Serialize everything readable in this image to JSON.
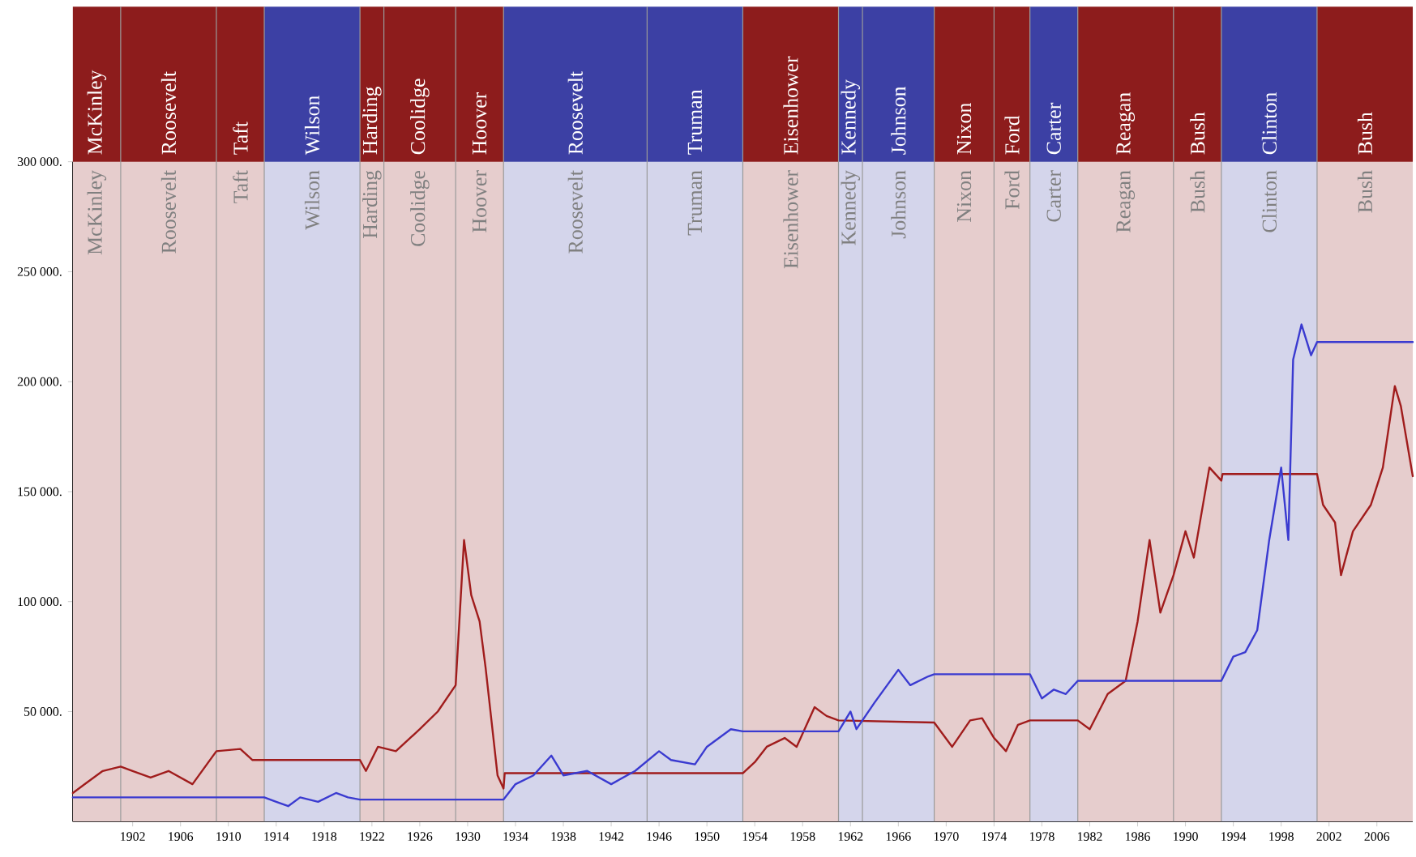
{
  "chart_data": {
    "type": "line",
    "xlim": [
      1897,
      2009
    ],
    "ylim": [
      0,
      300000
    ],
    "xticks": [
      1902,
      1906,
      1910,
      1914,
      1918,
      1922,
      1926,
      1930,
      1934,
      1938,
      1942,
      1946,
      1950,
      1954,
      1958,
      1962,
      1966,
      1970,
      1974,
      1978,
      1982,
      1986,
      1990,
      1994,
      1998,
      2002,
      2006
    ],
    "yticks": [
      {
        "value": 50000,
        "label": "50 000."
      },
      {
        "value": 100000,
        "label": "100 000."
      },
      {
        "value": 150000,
        "label": "150 000."
      },
      {
        "value": 200000,
        "label": "200 000."
      },
      {
        "value": 250000,
        "label": "250 000."
      },
      {
        "value": 300000,
        "label": "300 000."
      }
    ],
    "series": [
      {
        "color": "#a01c1c",
        "x": [
          1897,
          1898,
          1899.5,
          1901,
          1902,
          1903.5,
          1905,
          1907,
          1909,
          1911,
          1912,
          1913,
          1921,
          1921.5,
          1922.5,
          1924,
          1926,
          1927.5,
          1929,
          1929.7,
          1930.3,
          1931,
          1931.5,
          1932.5,
          1933,
          1933.1,
          1953,
          1954,
          1955,
          1956.5,
          1957.5,
          1959,
          1960,
          1961,
          1969,
          1970.5,
          1972,
          1973,
          1974,
          1975,
          1976,
          1977,
          1981,
          1982,
          1983.5,
          1985,
          1986,
          1987,
          1987.9,
          1989,
          1990,
          1990.7,
          1992,
          1993,
          1993.1,
          2001,
          2001.5,
          2002.5,
          2003,
          2004,
          2005.5,
          2006.5,
          2007.5,
          2008,
          2009
        ],
        "values": [
          13000,
          17000,
          23000,
          25000,
          23000,
          20000,
          23000,
          17000,
          32000,
          33000,
          28000,
          28000,
          28000,
          23000,
          34000,
          32000,
          42000,
          50000,
          62000,
          128000,
          103000,
          91000,
          70000,
          21000,
          15000,
          22000,
          22000,
          27000,
          34000,
          38000,
          34000,
          52000,
          48000,
          46000,
          45000,
          34000,
          46000,
          47000,
          38000,
          32000,
          44000,
          46000,
          46000,
          42000,
          58000,
          64000,
          91000,
          128000,
          95000,
          112000,
          132000,
          120000,
          161000,
          155000,
          158000,
          158000,
          144000,
          136000,
          112000,
          132000,
          144000,
          161000,
          198000,
          189000,
          157000
        ]
      },
      {
        "color": "#3a3ad0",
        "x": [
          1897,
          1913,
          1914,
          1915,
          1916,
          1917.5,
          1919,
          1920,
          1921,
          1933,
          1934,
          1935.5,
          1937,
          1938,
          1940,
          1942,
          1944,
          1946,
          1947,
          1949,
          1950,
          1952,
          1953,
          1961,
          1962,
          1962.5,
          1964,
          1966,
          1967,
          1968.5,
          1969,
          1977,
          1978,
          1979,
          1980,
          1981,
          1993,
          1994,
          1995,
          1996,
          1997,
          1998,
          1998.6,
          1999,
          1999.7,
          2000.5,
          2001,
          2009
        ],
        "values": [
          11000,
          11000,
          9000,
          7000,
          11000,
          9000,
          13000,
          11000,
          10000,
          10000,
          17000,
          21000,
          30000,
          21000,
          23000,
          17000,
          23000,
          32000,
          28000,
          26000,
          34000,
          42000,
          41000,
          41000,
          50000,
          42000,
          54000,
          69000,
          62000,
          66000,
          67000,
          67000,
          56000,
          60000,
          58000,
          64000,
          64000,
          75000,
          77000,
          87000,
          128000,
          161000,
          128000,
          210000,
          226000,
          212000,
          218000,
          218000
        ]
      }
    ],
    "bands": [
      {
        "axis": "x",
        "from": 1897,
        "to": 1901,
        "label": "McKinley",
        "color": "#e6cdcd"
      },
      {
        "axis": "x",
        "from": 1901,
        "to": 1909,
        "label": "Roosevelt",
        "color": "#e6cdcd"
      },
      {
        "axis": "x",
        "from": 1909,
        "to": 1913,
        "label": "Taft",
        "color": "#e6cdcd"
      },
      {
        "axis": "x",
        "from": 1913,
        "to": 1921,
        "label": "Wilson",
        "color": "#d4d5eb"
      },
      {
        "axis": "x",
        "from": 1921,
        "to": 1923,
        "label": "Harding",
        "color": "#e6cdcd"
      },
      {
        "axis": "x",
        "from": 1923,
        "to": 1929,
        "label": "Coolidge",
        "color": "#e6cdcd"
      },
      {
        "axis": "x",
        "from": 1929,
        "to": 1933,
        "label": "Hoover",
        "color": "#e6cdcd"
      },
      {
        "axis": "x",
        "from": 1933,
        "to": 1945,
        "label": "Roosevelt",
        "color": "#d4d5eb"
      },
      {
        "axis": "x",
        "from": 1945,
        "to": 1953,
        "label": "Truman",
        "color": "#d4d5eb"
      },
      {
        "axis": "x",
        "from": 1953,
        "to": 1961,
        "label": "Eisenhower",
        "color": "#e6cdcd"
      },
      {
        "axis": "x",
        "from": 1961,
        "to": 1963,
        "label": "Kennedy",
        "color": "#d4d5eb"
      },
      {
        "axis": "x",
        "from": 1963,
        "to": 1969,
        "label": "Johnson",
        "color": "#d4d5eb"
      },
      {
        "axis": "x",
        "from": 1969,
        "to": 1974,
        "label": "Nixon",
        "color": "#e6cdcd"
      },
      {
        "axis": "x",
        "from": 1974,
        "to": 1977,
        "label": "Ford",
        "color": "#e6cdcd"
      },
      {
        "axis": "x",
        "from": 1977,
        "to": 1981,
        "label": "Carter",
        "color": "#d4d5eb"
      },
      {
        "axis": "x",
        "from": 1981,
        "to": 1989,
        "label": "Reagan",
        "color": "#e6cdcd"
      },
      {
        "axis": "x",
        "from": 1989,
        "to": 1993,
        "label": "Bush",
        "color": "#e6cdcd"
      },
      {
        "axis": "x",
        "from": 1993,
        "to": 2001,
        "label": "Clinton",
        "color": "#d4d5eb"
      },
      {
        "axis": "x",
        "from": 2001,
        "to": 2009,
        "label": "Bush",
        "color": "#e6cdcd"
      }
    ]
  }
}
